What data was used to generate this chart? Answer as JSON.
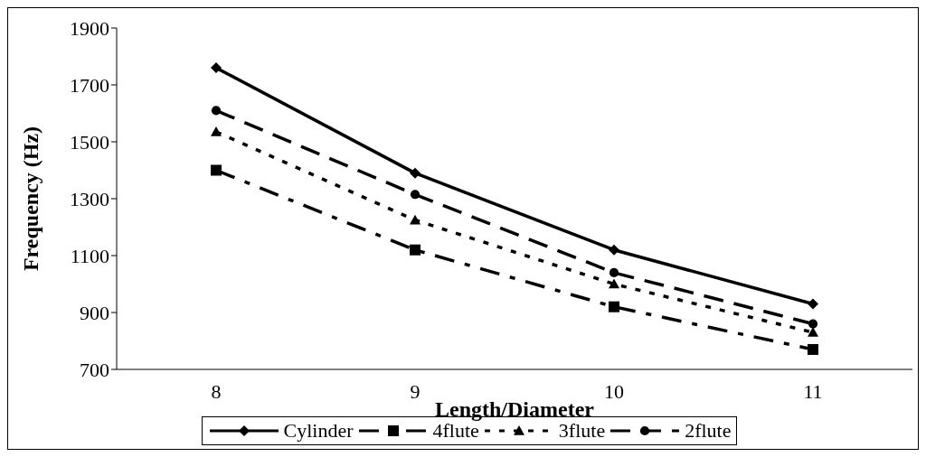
{
  "chart_data": {
    "type": "line",
    "xlabel": "Length/Diameter",
    "ylabel": "Frequency (Hz)",
    "categories": [
      "8",
      "9",
      "10",
      "11"
    ],
    "ylim": [
      700,
      1900
    ],
    "yticks": [
      700,
      900,
      1100,
      1300,
      1500,
      1700,
      1900
    ],
    "grid": false,
    "legend": "bottom",
    "series": [
      {
        "name": "Cylinder",
        "color": "#000000",
        "values": [
          1760,
          1390,
          1120,
          930
        ],
        "marker": "diamond",
        "line_style": "solid"
      },
      {
        "name": "4flute",
        "color": "#000000",
        "values": [
          1400,
          1120,
          920,
          770
        ],
        "marker": "square",
        "line_style": "dashdot"
      },
      {
        "name": "3flute",
        "color": "#000000",
        "values": [
          1535,
          1225,
          1000,
          830
        ],
        "marker": "triangle",
        "line_style": "dotted"
      },
      {
        "name": "2flute",
        "color": "#000000",
        "values": [
          1610,
          1315,
          1040,
          860
        ],
        "marker": "circle",
        "line_style": "dashed"
      }
    ]
  }
}
